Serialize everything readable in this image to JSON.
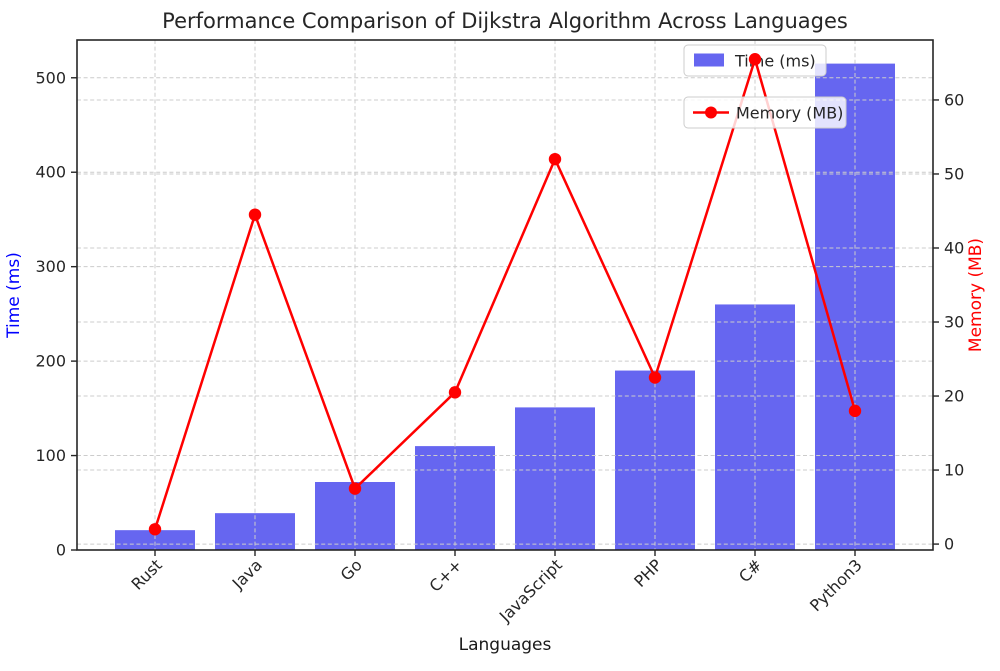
{
  "title": "Performance Comparison of Dijkstra Algorithm Across Languages",
  "chart_data": {
    "type": "bar",
    "title": "Performance Comparison of Dijkstra Algorithm Across Languages",
    "categories": [
      "Rust",
      "Java",
      "Go",
      "C++",
      "JavaScript",
      "PHP",
      "C#",
      "Python3"
    ],
    "series": [
      {
        "name": "Time (ms)",
        "type": "bar",
        "axis": "left",
        "color": "#6666f0",
        "values": [
          21,
          39,
          72,
          110,
          151,
          190,
          260,
          515
        ]
      },
      {
        "name": "Memory (MB)",
        "type": "line",
        "axis": "right",
        "color": "#ff0000",
        "marker": "circle",
        "values": [
          2,
          44.5,
          7.5,
          20.5,
          52,
          22.5,
          65.5,
          18
        ]
      }
    ],
    "xlabel": "Languages",
    "ylabel_left": "Time (ms)",
    "ylabel_right": "Memory (MB)",
    "left_axis": {
      "ticks": [
        0,
        100,
        200,
        300,
        400,
        500
      ],
      "lim": [
        0,
        540
      ],
      "label_color": "#0000ff",
      "tick_color": "#262626"
    },
    "right_axis": {
      "ticks": [
        0,
        10,
        20,
        30,
        40,
        50,
        60
      ],
      "lim": [
        -0.8,
        68.1
      ],
      "label_color": "#ff0000",
      "tick_color": "#262626"
    },
    "legend": [
      {
        "label": "Time (ms)",
        "marker": "bar-swatch"
      },
      {
        "label": "Memory (MB)",
        "marker": "line-dot"
      }
    ],
    "grid": true,
    "grid_style": "dashed",
    "grid_color": "#cccccc",
    "spine_color": "#262626",
    "x_tick_rotation_deg": 45
  }
}
